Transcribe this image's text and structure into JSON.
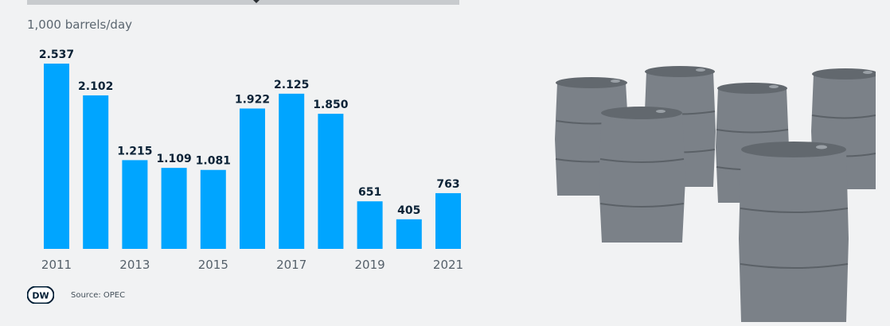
{
  "header": {
    "unit_label": "1,000 barrels/day"
  },
  "footer": {
    "source": "Source: OPEC",
    "logo_text": "DW"
  },
  "colors": {
    "bar": "#00a5ff",
    "barrel": "#7b8188",
    "background": "#f1f2f3"
  },
  "chart_data": {
    "type": "bar",
    "x": [
      2011,
      2012,
      2013,
      2014,
      2015,
      2016,
      2017,
      2018,
      2019,
      2020,
      2021
    ],
    "values": [
      2537,
      2102,
      1215,
      1109,
      1081,
      1922,
      2125,
      1850,
      651,
      405,
      763
    ],
    "data_labels": [
      "2.537",
      "2.102",
      "1.215",
      "1.109",
      "1.081",
      "1.922",
      "2.125",
      "1.850",
      "651",
      "405",
      "763"
    ],
    "tick_labels": [
      "2011",
      "2013",
      "2015",
      "2017",
      "2019",
      "2021"
    ],
    "ylabel": "1,000 barrels/day",
    "ylim": [
      0,
      2537
    ],
    "grid": false
  }
}
